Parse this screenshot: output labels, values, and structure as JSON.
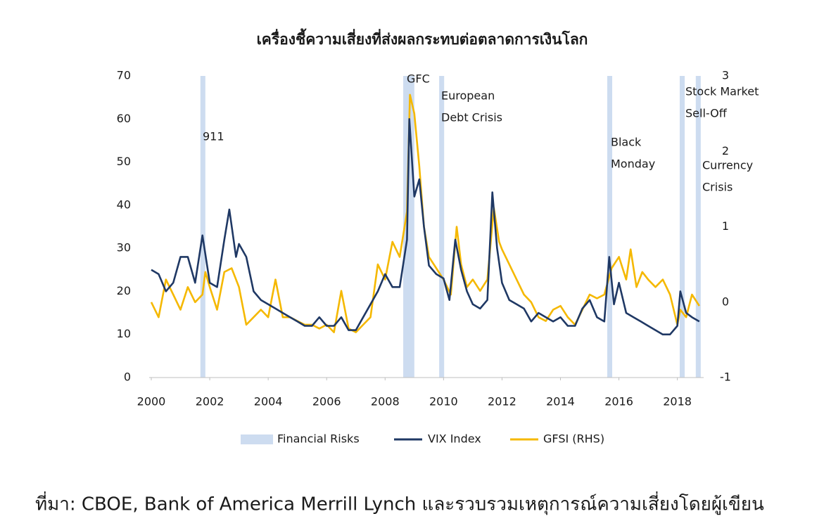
{
  "chart_data": {
    "type": "line",
    "title": "เครื่องชี้ความเสี่ยงที่ส่งผลกระทบต่อตลาดการเงินโลก",
    "source": "ที่มา: CBOE, Bank of America Merrill Lynch และรวบรวมเหตุการณ์ความเสี่ยงโดยผู้เขียน",
    "band_name": "Financial Risks",
    "band_color": "#cddcf0",
    "bands": [
      {
        "start": 2001.68,
        "end": 2001.85,
        "label": [
          "911"
        ]
      },
      {
        "start": 2008.62,
        "end": 2009.0,
        "label": [
          "GFC"
        ]
      },
      {
        "start": 2009.85,
        "end": 2010.02,
        "label": [
          "European",
          "Debt Crisis"
        ]
      },
      {
        "start": 2015.6,
        "end": 2015.77,
        "label": [
          "Black",
          "Monday"
        ]
      },
      {
        "start": 2018.08,
        "end": 2018.25,
        "label": [
          "Stock Market",
          "Sell-Off"
        ]
      },
      {
        "start": 2018.63,
        "end": 2018.8,
        "label": [
          "Currency",
          "Crisis"
        ]
      }
    ],
    "xlim": [
      2000,
      2018.9
    ],
    "xticks": [
      2000,
      2002,
      2004,
      2006,
      2008,
      2010,
      2012,
      2014,
      2016,
      2018
    ],
    "ylim": [
      0,
      70
    ],
    "yticks": [
      0,
      10,
      20,
      30,
      40,
      50,
      60,
      70
    ],
    "y2lim": [
      -1,
      3
    ],
    "y2ticks": [
      -1,
      0,
      1,
      2,
      3
    ],
    "series": [
      {
        "name": "VIX Index",
        "color": "#1f3864",
        "x": [
          2000.0,
          2000.25,
          2000.5,
          2000.75,
          2001.0,
          2001.25,
          2001.5,
          2001.75,
          2002.0,
          2002.25,
          2002.5,
          2002.67,
          2002.9,
          2003.0,
          2003.25,
          2003.5,
          2003.75,
          2004.0,
          2004.25,
          2004.5,
          2004.75,
          2005.0,
          2005.25,
          2005.5,
          2005.75,
          2006.0,
          2006.25,
          2006.5,
          2006.75,
          2007.0,
          2007.25,
          2007.5,
          2007.75,
          2008.0,
          2008.25,
          2008.5,
          2008.75,
          2008.83,
          2009.0,
          2009.17,
          2009.33,
          2009.5,
          2009.75,
          2010.0,
          2010.2,
          2010.4,
          2010.6,
          2010.8,
          2011.0,
          2011.25,
          2011.5,
          2011.67,
          2011.83,
          2012.0,
          2012.25,
          2012.5,
          2012.75,
          2013.0,
          2013.25,
          2013.5,
          2013.75,
          2014.0,
          2014.25,
          2014.5,
          2014.75,
          2015.0,
          2015.25,
          2015.5,
          2015.67,
          2015.83,
          2016.0,
          2016.25,
          2016.5,
          2016.75,
          2017.0,
          2017.25,
          2017.5,
          2017.75,
          2018.0,
          2018.1,
          2018.3,
          2018.5,
          2018.75
        ],
        "values": [
          25,
          24,
          20,
          22,
          28,
          28,
          22,
          33,
          22,
          21,
          32,
          39,
          28,
          31,
          28,
          20,
          18,
          17,
          16,
          15,
          14,
          13,
          12,
          12,
          14,
          12,
          12,
          14,
          11,
          11,
          14,
          17,
          20,
          24,
          21,
          21,
          32,
          60,
          42,
          46,
          35,
          26,
          24,
          23,
          18,
          32,
          25,
          20,
          17,
          16,
          18,
          43,
          30,
          22,
          18,
          17,
          16,
          13,
          15,
          14,
          13,
          14,
          12,
          12,
          16,
          18,
          14,
          13,
          28,
          17,
          22,
          15,
          14,
          13,
          12,
          11,
          10,
          10,
          12,
          20,
          15,
          14,
          13
        ]
      },
      {
        "name": "GFSI (RHS)",
        "color": "#f5b800",
        "axis": "y2",
        "x": [
          2000.0,
          2000.25,
          2000.5,
          2000.75,
          2001.0,
          2001.25,
          2001.5,
          2001.75,
          2001.85,
          2002.0,
          2002.25,
          2002.5,
          2002.75,
          2003.0,
          2003.25,
          2003.5,
          2003.75,
          2004.0,
          2004.25,
          2004.5,
          2004.75,
          2005.0,
          2005.25,
          2005.5,
          2005.75,
          2006.0,
          2006.25,
          2006.5,
          2006.75,
          2007.0,
          2007.25,
          2007.5,
          2007.75,
          2008.0,
          2008.25,
          2008.5,
          2008.75,
          2008.85,
          2009.0,
          2009.17,
          2009.33,
          2009.5,
          2009.75,
          2010.0,
          2010.25,
          2010.45,
          2010.6,
          2010.8,
          2011.0,
          2011.25,
          2011.5,
          2011.72,
          2011.9,
          2012.0,
          2012.25,
          2012.5,
          2012.75,
          2013.0,
          2013.25,
          2013.5,
          2013.75,
          2014.0,
          2014.25,
          2014.5,
          2014.75,
          2015.0,
          2015.25,
          2015.5,
          2015.75,
          2016.0,
          2016.25,
          2016.4,
          2016.6,
          2016.8,
          2017.0,
          2017.25,
          2017.5,
          2017.75,
          2018.0,
          2018.1,
          2018.3,
          2018.5,
          2018.75
        ],
        "values": [
          0,
          -0.2,
          0.3,
          0.1,
          -0.1,
          0.2,
          0,
          0.1,
          0.4,
          0.2,
          -0.1,
          0.4,
          0.45,
          0.2,
          -0.3,
          -0.2,
          -0.1,
          -0.2,
          0.3,
          -0.2,
          -0.2,
          -0.25,
          -0.3,
          -0.3,
          -0.35,
          -0.3,
          -0.4,
          0.15,
          -0.35,
          -0.4,
          -0.3,
          -0.2,
          0.5,
          0.3,
          0.8,
          0.6,
          1.2,
          2.75,
          2.5,
          1.8,
          1.0,
          0.6,
          0.45,
          0.3,
          0.1,
          1.0,
          0.5,
          0.2,
          0.3,
          0.15,
          0.3,
          1.25,
          0.8,
          0.7,
          0.5,
          0.3,
          0.1,
          0,
          -0.2,
          -0.25,
          -0.1,
          -0.05,
          -0.2,
          -0.3,
          -0.1,
          0.1,
          0.05,
          0.1,
          0.45,
          0.6,
          0.3,
          0.7,
          0.2,
          0.4,
          0.3,
          0.2,
          0.3,
          0.1,
          -0.3,
          -0.1,
          -0.2,
          0.1,
          -0.05
        ]
      }
    ]
  }
}
